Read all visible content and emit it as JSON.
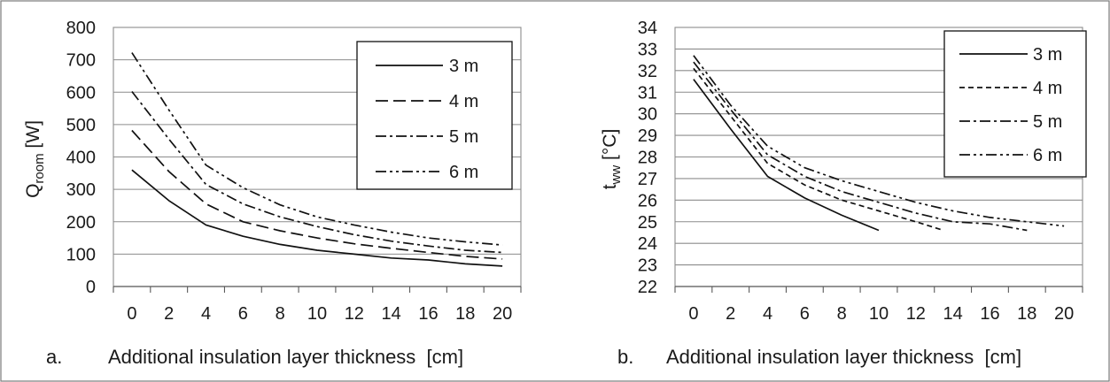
{
  "chart_data": [
    {
      "type": "line",
      "panel_label": "a.",
      "xlabel": "Additional insulation layer thickness  [cm]",
      "ylabel": {
        "main": "Q",
        "sub": "room",
        "unit": " [W]"
      },
      "ylim": [
        0,
        800
      ],
      "yticks": [
        0,
        100,
        200,
        300,
        400,
        500,
        600,
        700,
        800
      ],
      "xlim": [
        -1,
        21
      ],
      "xticks": [
        0,
        2,
        4,
        6,
        8,
        10,
        12,
        14,
        16,
        18,
        20
      ],
      "grid": "horizontal",
      "legend_placement": "top-right",
      "series": [
        {
          "name": "3 m",
          "dash": "solid",
          "points": [
            [
              0,
              360
            ],
            [
              2,
              265
            ],
            [
              4,
              190
            ],
            [
              6,
              155
            ],
            [
              8,
              130
            ],
            [
              10,
              112
            ],
            [
              12,
              100
            ],
            [
              14,
              88
            ],
            [
              16,
              82
            ],
            [
              18,
              70
            ],
            [
              20,
              63
            ]
          ]
        },
        {
          "name": "4 m",
          "dash": "long-dash",
          "points": [
            [
              0,
              482
            ],
            [
              2,
              355
            ],
            [
              4,
              255
            ],
            [
              6,
              200
            ],
            [
              8,
              172
            ],
            [
              10,
              150
            ],
            [
              12,
              132
            ],
            [
              14,
              118
            ],
            [
              16,
              105
            ],
            [
              18,
              93
            ],
            [
              20,
              85
            ]
          ]
        },
        {
          "name": "5 m",
          "dash": "dash-dot",
          "points": [
            [
              0,
              602
            ],
            [
              2,
              455
            ],
            [
              4,
              315
            ],
            [
              6,
              255
            ],
            [
              8,
              215
            ],
            [
              10,
              185
            ],
            [
              12,
              160
            ],
            [
              14,
              140
            ],
            [
              16,
              125
            ],
            [
              18,
              112
            ],
            [
              20,
              105
            ]
          ]
        },
        {
          "name": "6 m",
          "dash": "dash-dot-dot",
          "points": [
            [
              0,
              722
            ],
            [
              2,
              545
            ],
            [
              4,
              375
            ],
            [
              6,
              305
            ],
            [
              8,
              252
            ],
            [
              10,
              215
            ],
            [
              12,
              190
            ],
            [
              14,
              168
            ],
            [
              16,
              150
            ],
            [
              18,
              138
            ],
            [
              20,
              128
            ]
          ]
        }
      ]
    },
    {
      "type": "line",
      "panel_label": "b.",
      "xlabel": "Additional insulation layer thickness  [cm]",
      "ylabel": {
        "main": "t",
        "sub": "ww",
        "unit": " [°C]"
      },
      "ylim": [
        22,
        34
      ],
      "yticks": [
        22,
        23,
        24,
        25,
        26,
        27,
        28,
        29,
        30,
        31,
        32,
        33,
        34
      ],
      "xlim": [
        -1,
        21
      ],
      "xticks": [
        0,
        2,
        4,
        6,
        8,
        10,
        12,
        14,
        16,
        18,
        20
      ],
      "grid": "horizontal",
      "legend_placement": "top-right",
      "series": [
        {
          "name": "3 m",
          "dash": "solid",
          "points": [
            [
              0,
              31.6
            ],
            [
              2,
              29.3
            ],
            [
              4,
              27.1
            ],
            [
              6,
              26.1
            ],
            [
              8,
              25.3
            ],
            [
              10,
              24.6
            ]
          ]
        },
        {
          "name": "4 m",
          "dash": "short-dash",
          "points": [
            [
              0,
              32.1
            ],
            [
              2,
              29.9
            ],
            [
              4,
              27.7
            ],
            [
              6,
              26.7
            ],
            [
              8,
              26.0
            ],
            [
              10,
              25.5
            ],
            [
              12,
              25.0
            ],
            [
              13.5,
              24.6
            ]
          ]
        },
        {
          "name": "5 m",
          "dash": "dash-dot",
          "points": [
            [
              0,
              32.4
            ],
            [
              2,
              30.2
            ],
            [
              4,
              28.1
            ],
            [
              6,
              27.1
            ],
            [
              8,
              26.4
            ],
            [
              10,
              25.9
            ],
            [
              12,
              25.4
            ],
            [
              14,
              25.0
            ],
            [
              16,
              24.9
            ],
            [
              18,
              24.6
            ]
          ]
        },
        {
          "name": "6 m",
          "dash": "dash-dot-dot",
          "points": [
            [
              0,
              32.7
            ],
            [
              2,
              30.4
            ],
            [
              4,
              28.5
            ],
            [
              6,
              27.5
            ],
            [
              8,
              26.9
            ],
            [
              10,
              26.4
            ],
            [
              12,
              25.9
            ],
            [
              14,
              25.5
            ],
            [
              16,
              25.2
            ],
            [
              18,
              25.0
            ],
            [
              20,
              24.8
            ]
          ]
        }
      ]
    }
  ]
}
